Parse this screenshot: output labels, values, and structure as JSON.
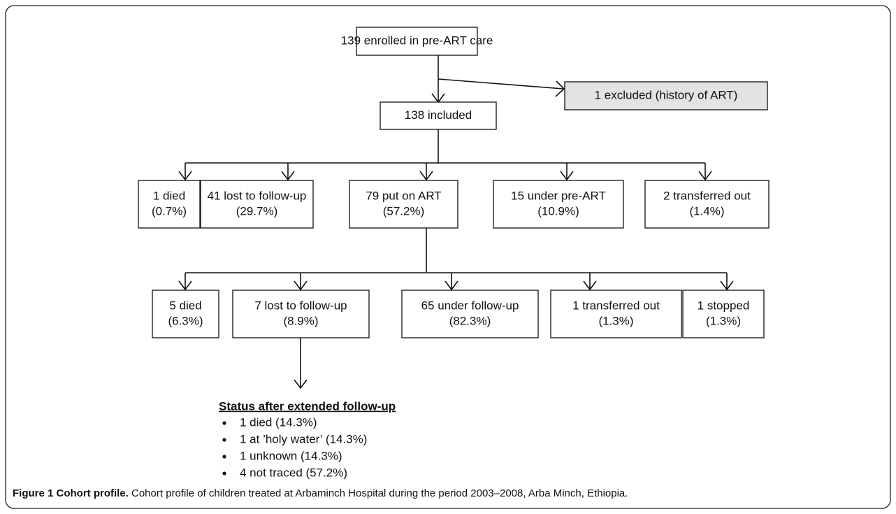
{
  "nodes": {
    "enrolled": {
      "lines": [
        "139 enrolled in pre-ART care"
      ]
    },
    "excluded": {
      "lines": [
        "1 excluded (history of ART)"
      ]
    },
    "included": {
      "lines": [
        "138 included"
      ]
    },
    "level1": [
      {
        "lines": [
          "1 died",
          "(0.7%)"
        ]
      },
      {
        "lines": [
          "41 lost to follow-up",
          "(29.7%)"
        ]
      },
      {
        "lines": [
          "79 put on ART",
          "(57.2%)"
        ]
      },
      {
        "lines": [
          "15 under pre-ART",
          "(10.9%)"
        ]
      },
      {
        "lines": [
          "2 transferred out",
          "(1.4%)"
        ]
      }
    ],
    "level2": [
      {
        "lines": [
          "5 died",
          "(6.3%)"
        ]
      },
      {
        "lines": [
          "7 lost to follow-up",
          "(8.9%)"
        ]
      },
      {
        "lines": [
          "65 under follow-up",
          "(82.3%)"
        ]
      },
      {
        "lines": [
          "1 transferred out",
          "(1.3%)"
        ]
      },
      {
        "lines": [
          "1 stopped",
          "(1.3%)"
        ]
      }
    ]
  },
  "status": {
    "title": "Status after extended follow-up",
    "items": [
      "1 died (14.3%)",
      "1 at ’holy water’ (14.3%)",
      "1 unknown (14.3%)",
      "4 not traced (57.2%)"
    ]
  },
  "caption": {
    "label": "Figure 1 Cohort profile.",
    "text": " Cohort profile of children treated at Arbaminch Hospital during the period 2003–2008, Arba Minch, Ethiopia."
  }
}
